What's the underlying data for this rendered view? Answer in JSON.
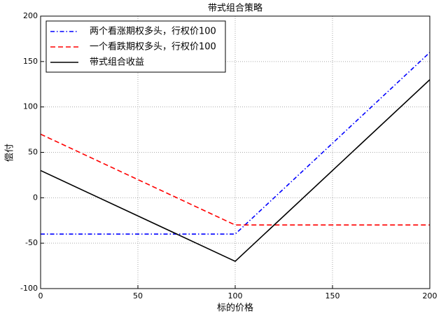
{
  "chart_data": {
    "type": "line",
    "title": "带式组合策略",
    "x_label": "标的价格",
    "y_label": "偿付",
    "x": [
      0,
      100,
      200
    ],
    "series": [
      {
        "name": "两个看涨期权多头，行权价100",
        "color": "#0000ff",
        "linestyle": "dashdot",
        "values": [
          -40,
          -40,
          160
        ]
      },
      {
        "name": "一个看跌期权多头，行权价100",
        "color": "#ff0000",
        "linestyle": "dashed",
        "values": [
          70,
          -30,
          -30
        ]
      },
      {
        "name": "带式组合收益",
        "color": "#000000",
        "linestyle": "solid",
        "values": [
          30,
          -70,
          130
        ]
      }
    ],
    "xlim": [
      0,
      200
    ],
    "xticks": [
      0,
      50,
      100,
      150,
      200
    ],
    "ylim": [
      -100,
      200
    ],
    "yticks": [
      -100,
      -50,
      0,
      50,
      100,
      150,
      200
    ],
    "grid": true,
    "legend": "upper left"
  }
}
